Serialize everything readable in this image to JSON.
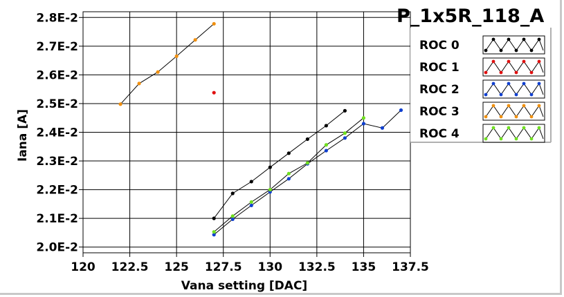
{
  "chart_data": {
    "type": "line",
    "title": "P_1x5R_118_A",
    "xlabel": "Vana setting [DAC]",
    "ylabel": "Iana [A]",
    "xlim": [
      120,
      137.5
    ],
    "ylim": [
      0.0198,
      0.0282
    ],
    "x_ticks": [
      120,
      122.5,
      125,
      127.5,
      130,
      132.5,
      135,
      137.5
    ],
    "x_tick_labels": [
      "120",
      "122.5",
      "125",
      "127.5",
      "130",
      "132.5",
      "135",
      "137.5"
    ],
    "y_ticks": [
      0.02,
      0.021,
      0.022,
      0.023,
      0.024,
      0.025,
      0.026,
      0.027,
      0.028
    ],
    "y_tick_labels": [
      "2.0E-2",
      "2.1E-2",
      "2.2E-2",
      "2.3E-2",
      "2.4E-2",
      "2.5E-2",
      "2.6E-2",
      "2.7E-2",
      "2.8E-2"
    ],
    "grid": true,
    "legend_position": "right",
    "series": [
      {
        "name": "ROC 0",
        "color": "#000000",
        "points": [
          [
            127,
            0.021
          ],
          [
            128,
            0.02187
          ],
          [
            129,
            0.02228
          ],
          [
            130,
            0.02278
          ],
          [
            131,
            0.02327
          ],
          [
            132,
            0.02376
          ],
          [
            133,
            0.02423
          ],
          [
            134,
            0.02475
          ]
        ]
      },
      {
        "name": "ROC 1",
        "color": "#e01010",
        "points": [
          [
            127,
            0.02538
          ]
        ]
      },
      {
        "name": "ROC 2",
        "color": "#1040d0",
        "points": [
          [
            127,
            0.02043
          ],
          [
            128,
            0.02097
          ],
          [
            129,
            0.02145
          ],
          [
            130,
            0.02192
          ],
          [
            131,
            0.02238
          ],
          [
            132,
            0.0229
          ],
          [
            133,
            0.02336
          ],
          [
            134,
            0.0238
          ],
          [
            135,
            0.0243
          ],
          [
            136,
            0.02415
          ],
          [
            137,
            0.02477
          ]
        ]
      },
      {
        "name": "ROC 3",
        "color": "#f09010",
        "points": [
          [
            122,
            0.02498
          ],
          [
            123,
            0.0257
          ],
          [
            124,
            0.0261
          ],
          [
            125,
            0.02665
          ],
          [
            126,
            0.02722
          ],
          [
            127,
            0.02778
          ]
        ]
      },
      {
        "name": "ROC 4",
        "color": "#70e020",
        "points": [
          [
            127,
            0.02053
          ],
          [
            128,
            0.02108
          ],
          [
            129,
            0.02157
          ],
          [
            130,
            0.022
          ],
          [
            131,
            0.02256
          ],
          [
            132,
            0.02293
          ],
          [
            133,
            0.02356
          ],
          [
            134,
            0.02397
          ],
          [
            135,
            0.0245
          ]
        ]
      }
    ]
  }
}
